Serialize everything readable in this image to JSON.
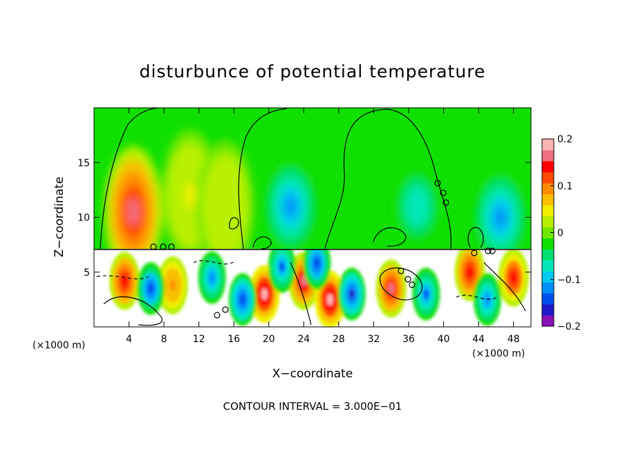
{
  "chart_data": {
    "type": "heatmap",
    "title": "disturbunce of potential temperature",
    "xlabel": "X−coordinate",
    "ylabel": "Z−coordinate",
    "x_unit": "(×1000 m)",
    "x_unit_right": "(×1000 m)",
    "xlim": [
      0,
      50
    ],
    "ylim": [
      0,
      20
    ],
    "x_ticks": [
      4,
      8,
      12,
      16,
      20,
      24,
      28,
      32,
      36,
      40,
      44,
      48
    ],
    "x_tick_labels": [
      "4",
      "8",
      "12",
      "16",
      "20",
      "24",
      "28",
      "32",
      "36",
      "40",
      "44",
      "48"
    ],
    "y_ticks": [
      5,
      10,
      15
    ],
    "y_tick_labels": [
      "5",
      "10",
      "15"
    ],
    "colorbar": {
      "min": -0.2,
      "max": 0.2,
      "ticks": [
        0.2,
        0.1,
        0,
        -0.1,
        -0.2
      ],
      "tick_labels": [
        "0.2",
        "0.1",
        "0",
        "−0.1",
        "−0.2"
      ],
      "colors": [
        "#8a10b8",
        "#2018c8",
        "#0050f0",
        "#0090f8",
        "#00c8f0",
        "#00e8b8",
        "#00e070",
        "#10e000",
        "#70e800",
        "#b8f000",
        "#f0f000",
        "#f8c000",
        "#ff8c00",
        "#ff4800",
        "#ff0000",
        "#f07080",
        "#ffb4b4"
      ]
    },
    "interface_z": 7.2,
    "warm_anomalies": [
      {
        "x": 4.5,
        "z": 10.5,
        "value": 0.16
      },
      {
        "x": 11.0,
        "z": 12.0,
        "value": 0.04
      },
      {
        "x": 15.0,
        "z": 11.0,
        "value": 0.03
      },
      {
        "x": 3.5,
        "z": 4.2,
        "value": 0.15
      },
      {
        "x": 9.0,
        "z": 3.8,
        "value": 0.1
      },
      {
        "x": 19.5,
        "z": 3.0,
        "value": 0.18
      },
      {
        "x": 24.0,
        "z": 4.2,
        "value": 0.17
      },
      {
        "x": 27.0,
        "z": 2.5,
        "value": 0.18
      },
      {
        "x": 34.0,
        "z": 3.5,
        "value": 0.16
      },
      {
        "x": 43.0,
        "z": 5.0,
        "value": 0.15
      },
      {
        "x": 48.0,
        "z": 4.5,
        "value": 0.14
      }
    ],
    "cold_anomalies": [
      {
        "x": 22.5,
        "z": 11.0,
        "value": -0.12
      },
      {
        "x": 37.0,
        "z": 11.0,
        "value": -0.08
      },
      {
        "x": 46.5,
        "z": 10.0,
        "value": -0.12
      },
      {
        "x": 6.5,
        "z": 3.5,
        "value": -0.14
      },
      {
        "x": 13.5,
        "z": 4.5,
        "value": -0.12
      },
      {
        "x": 17.0,
        "z": 2.5,
        "value": -0.15
      },
      {
        "x": 21.5,
        "z": 5.5,
        "value": -0.13
      },
      {
        "x": 25.5,
        "z": 5.8,
        "value": -0.14
      },
      {
        "x": 29.5,
        "z": 3.0,
        "value": -0.16
      },
      {
        "x": 38.0,
        "z": 3.0,
        "value": -0.13
      },
      {
        "x": 45.0,
        "z": 2.5,
        "value": -0.12
      }
    ],
    "contour_interval_label": "CONTOUR INTERVAL = 3.000E−01"
  }
}
